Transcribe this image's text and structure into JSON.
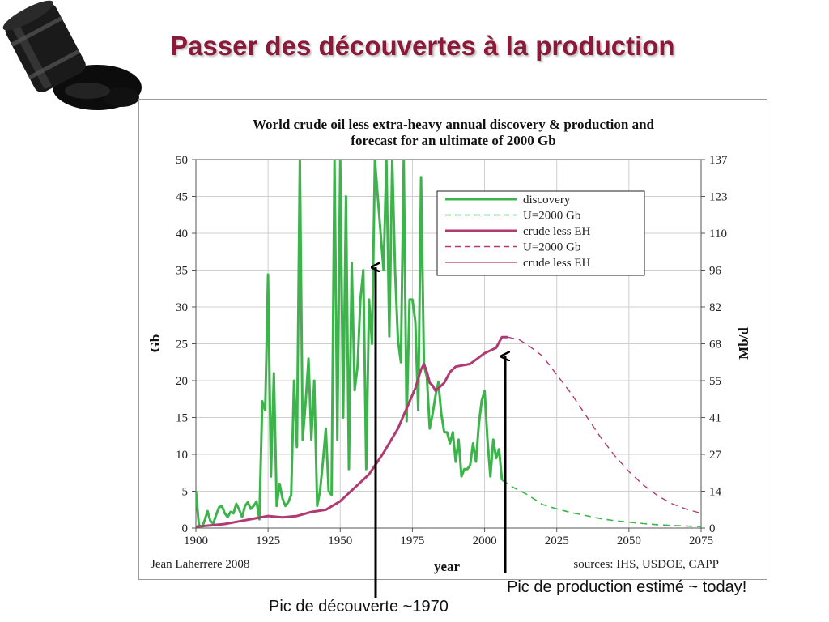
{
  "slide_title": "Passer des découvertes à la production",
  "logo": {
    "icon": "oil-barrel-spill-icon"
  },
  "annotations": {
    "discovery_peak": "Pic de découverte ~1970",
    "production_peak": "Pic de production estimé ~ today!"
  },
  "colors": {
    "title": "#8b1a3a",
    "discovery": "#3cb44b",
    "production": "#b03a72",
    "grid": "#cfcfcf"
  },
  "chart_data": {
    "type": "line",
    "title": "World crude oil less extra-heavy annual discovery & production and forecast for an ultimate of 2000 Gb",
    "title_lines": [
      "World crude oil less extra-heavy annual discovery & production and",
      "forecast for an ultimate of 2000 Gb"
    ],
    "xlabel": "year",
    "ylabel": "Gb",
    "y2label": "Mb/d",
    "xlim": [
      1900,
      2075
    ],
    "ylim": [
      0,
      50
    ],
    "y2lim": [
      0,
      137
    ],
    "x_ticks": [
      "1900",
      "1925",
      "1950",
      "1975",
      "2000",
      "2025",
      "2050",
      "2075"
    ],
    "y_ticks": [
      "0",
      "5",
      "10",
      "15",
      "20",
      "25",
      "30",
      "35",
      "40",
      "45",
      "50"
    ],
    "y2_ticks": [
      "0",
      "14",
      "27",
      "41",
      "55",
      "68",
      "82",
      "96",
      "110",
      "123",
      "137"
    ],
    "grid": true,
    "legend_position": "top-right",
    "credit": "Jean Laherrere 2008",
    "sources": "sources: IHS, USDOE, CAPP",
    "series": [
      {
        "name": "discovery",
        "axis": "left",
        "style": "solid",
        "x": [
          1900,
          1901,
          1902,
          1903,
          1904,
          1905,
          1906,
          1907,
          1908,
          1909,
          1910,
          1911,
          1912,
          1913,
          1914,
          1915,
          1916,
          1917,
          1918,
          1919,
          1920,
          1921,
          1922,
          1923,
          1924,
          1925,
          1926,
          1927,
          1928,
          1929,
          1930,
          1931,
          1932,
          1933,
          1934,
          1935,
          1936,
          1937,
          1938,
          1939,
          1940,
          1941,
          1942,
          1943,
          1944,
          1945,
          1946,
          1947,
          1948,
          1949,
          1950,
          1951,
          1952,
          1953,
          1954,
          1955,
          1956,
          1957,
          1958,
          1959,
          1960,
          1961,
          1962,
          1963,
          1964,
          1965,
          1966,
          1967,
          1968,
          1969,
          1970,
          1971,
          1972,
          1973,
          1974,
          1975,
          1976,
          1977,
          1978,
          1979,
          1980,
          1981,
          1982,
          1983,
          1984,
          1985,
          1986,
          1987,
          1988,
          1989,
          1990,
          1991,
          1992,
          1993,
          1994,
          1995,
          1996,
          1997,
          1998,
          1999,
          2000,
          2001,
          2002,
          2003,
          2004,
          2005,
          2006
        ],
        "y": [
          5,
          0.5,
          0,
          1,
          2.3,
          1,
          0.6,
          1.8,
          2.8,
          3,
          2,
          1.5,
          2.2,
          2,
          3.3,
          2.5,
          1.5,
          3,
          3.5,
          2.6,
          3,
          3.6,
          1.2,
          17.2,
          16,
          34.4,
          7,
          21,
          3,
          6,
          4,
          3,
          3.5,
          4.5,
          20,
          11,
          50,
          12,
          17,
          23,
          12,
          20,
          3,
          5,
          9,
          13.5,
          5,
          4.5,
          50,
          12,
          50,
          15,
          45,
          8,
          36,
          18.7,
          22,
          31,
          35,
          8,
          31,
          25,
          50,
          45,
          40,
          35,
          50,
          26,
          50,
          35,
          25.5,
          22.5,
          50,
          14.5,
          31,
          31,
          28,
          16,
          47.6,
          22,
          20.5,
          13.5,
          15.5,
          18,
          19.8,
          15.5,
          13,
          13,
          11.5,
          13,
          9,
          12,
          7,
          8,
          8,
          8.5,
          11.5,
          9,
          14,
          17.3,
          18.6,
          12,
          7,
          12,
          9.5,
          10.7,
          6.5
        ]
      },
      {
        "name": "U=2000 Gb",
        "axis": "left",
        "style": "dashed",
        "x": [
          2006,
          2010,
          2015,
          2020,
          2025,
          2030,
          2035,
          2040,
          2045,
          2050,
          2055,
          2060,
          2065,
          2070,
          2075
        ],
        "y": [
          6.5,
          5.5,
          4.5,
          3.2,
          2.6,
          2.1,
          1.7,
          1.3,
          1,
          0.8,
          0.6,
          0.45,
          0.35,
          0.28,
          0.2
        ]
      },
      {
        "name": "crude less EH",
        "axis": "right",
        "style": "solid",
        "x": [
          1900,
          1905,
          1910,
          1915,
          1920,
          1925,
          1930,
          1935,
          1940,
          1945,
          1950,
          1955,
          1960,
          1965,
          1970,
          1972,
          1974,
          1976,
          1978,
          1979,
          1980,
          1981,
          1982,
          1983,
          1984,
          1985,
          1986,
          1988,
          1990,
          1995,
          2000,
          2002,
          2004,
          2005,
          2006,
          2007,
          2008
        ],
        "y": [
          0.5,
          1,
          1.5,
          2.5,
          3.5,
          4.5,
          4,
          4.5,
          6,
          6.8,
          10,
          15,
          20,
          28,
          37,
          42,
          47,
          52,
          59,
          61,
          58,
          54,
          53,
          51,
          52,
          53,
          54,
          58,
          60,
          61,
          65,
          66,
          67,
          69,
          71,
          71,
          71
        ]
      },
      {
        "name": "U=2000 Gb",
        "axis": "right",
        "style": "dashed",
        "x": [
          2008,
          2012,
          2015,
          2020,
          2025,
          2030,
          2035,
          2040,
          2045,
          2050,
          2055,
          2060,
          2065,
          2070,
          2075
        ],
        "y": [
          71,
          70,
          68,
          64,
          57,
          50,
          42,
          34,
          27,
          21,
          16,
          12,
          9,
          7,
          5.5
        ]
      },
      {
        "name": "crude less EH",
        "axis": "right",
        "style": "thin"
      }
    ]
  }
}
